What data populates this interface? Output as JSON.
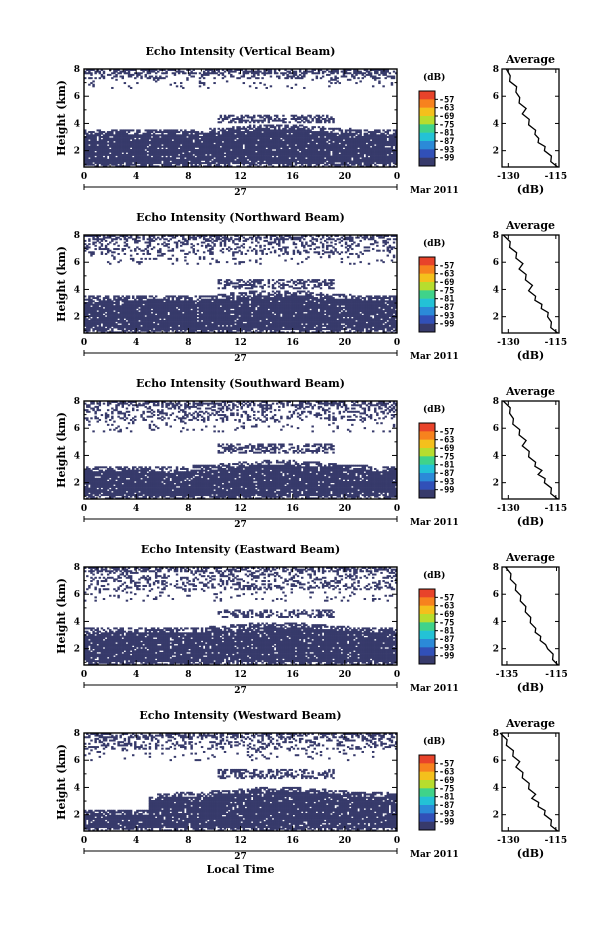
{
  "chart_data": [
    {
      "type": "heatmap",
      "title": "Echo Intensity (Vertical Beam)",
      "ylabel": "Height (km)",
      "xticks": [
        "0",
        "4",
        "8",
        "12",
        "16",
        "20",
        "0"
      ],
      "yticks": [
        "2",
        "4",
        "6",
        "8"
      ],
      "date_label": "27",
      "month_label": "Mar 2011",
      "colorbar": {
        "unit": "(dB)",
        "labels": [
          "-57",
          "-63",
          "-69",
          "-75",
          "-81",
          "-87",
          "-93",
          "-99"
        ]
      },
      "echo_layers": {
        "lower_top_km": 3.5,
        "upper_band_km": [
          4.1,
          4.6
        ],
        "top_patches_km": 7.3
      },
      "average": {
        "title": "Average",
        "xlabel": "(dB)",
        "xticks": [
          "-130",
          "-115"
        ],
        "yticks": [
          "2",
          "4",
          "6",
          "8"
        ],
        "x_db": [
          -115,
          -116,
          -117,
          -118,
          -119,
          -120,
          -121,
          -121,
          -122,
          -123,
          -124,
          -125,
          -125,
          -126,
          -127,
          -127,
          -128,
          -129,
          -130,
          -130
        ],
        "y_km": [
          0.8,
          1.2,
          1.6,
          2.0,
          2.3,
          2.6,
          2.9,
          3.2,
          3.5,
          3.9,
          4.3,
          4.7,
          5.1,
          5.5,
          5.9,
          6.3,
          6.7,
          7.1,
          7.5,
          8.0
        ]
      }
    },
    {
      "type": "heatmap",
      "title": "Echo Intensity (Northward Beam)",
      "ylabel": "Height (km)",
      "xticks": [
        "0",
        "4",
        "8",
        "12",
        "16",
        "20",
        "0"
      ],
      "yticks": [
        "2",
        "4",
        "6",
        "8"
      ],
      "date_label": "27",
      "month_label": "Mar 2011",
      "colorbar": {
        "unit": "(dB)",
        "labels": [
          "-57",
          "-63",
          "-69",
          "-75",
          "-81",
          "-87",
          "-93",
          "-99"
        ]
      },
      "echo_layers": {
        "lower_top_km": 3.5,
        "upper_band_km": [
          4.0,
          4.7
        ],
        "top_patches_km": 6.6
      },
      "average": {
        "title": "Average",
        "xlabel": "(dB)",
        "xticks": [
          "-130",
          "-115"
        ],
        "yticks": [
          "2",
          "4",
          "6",
          "8"
        ],
        "x_db": [
          -115,
          -116,
          -117,
          -117,
          -118,
          -119,
          -120,
          -121,
          -122,
          -123,
          -123,
          -124,
          -125,
          -126,
          -126,
          -127,
          -128,
          -129,
          -130,
          -131
        ],
        "y_km": [
          0.8,
          1.2,
          1.6,
          2.0,
          2.3,
          2.6,
          2.9,
          3.2,
          3.5,
          3.9,
          4.3,
          4.7,
          5.1,
          5.5,
          5.9,
          6.3,
          6.7,
          7.1,
          7.5,
          8.0
        ]
      }
    },
    {
      "type": "heatmap",
      "title": "Echo Intensity (Southward Beam)",
      "ylabel": "Height (km)",
      "xticks": [
        "0",
        "4",
        "8",
        "12",
        "16",
        "20",
        "0"
      ],
      "yticks": [
        "2",
        "4",
        "6",
        "8"
      ],
      "date_label": "27",
      "month_label": "Mar 2011",
      "colorbar": {
        "unit": "(dB)",
        "labels": [
          "-57",
          "-63",
          "-69",
          "-75",
          "-81",
          "-87",
          "-93",
          "-99"
        ]
      },
      "echo_layers": {
        "lower_top_km": 3.2,
        "upper_band_km": [
          4.2,
          4.9
        ],
        "top_patches_km": 6.5
      },
      "average": {
        "title": "Average",
        "xlabel": "(dB)",
        "xticks": [
          "-130",
          "-115"
        ],
        "yticks": [
          "2",
          "4",
          "6",
          "8"
        ],
        "x_db": [
          -115,
          -116,
          -117,
          -118,
          -119,
          -120,
          -120,
          -121,
          -122,
          -123,
          -124,
          -125,
          -125,
          -126,
          -127,
          -128,
          -129,
          -129,
          -130,
          -131
        ],
        "y_km": [
          0.8,
          1.2,
          1.6,
          2.0,
          2.3,
          2.6,
          2.9,
          3.2,
          3.5,
          3.9,
          4.3,
          4.7,
          5.1,
          5.5,
          5.9,
          6.3,
          6.7,
          7.1,
          7.5,
          8.0
        ]
      }
    },
    {
      "type": "heatmap",
      "title": "Echo Intensity (Eastward Beam)",
      "ylabel": "Height (km)",
      "xticks": [
        "0",
        "4",
        "8",
        "12",
        "16",
        "20",
        "0"
      ],
      "yticks": [
        "2",
        "4",
        "6",
        "8"
      ],
      "date_label": "27",
      "month_label": "Mar 2011",
      "colorbar": {
        "unit": "(dB)",
        "labels": [
          "-57",
          "-63",
          "-69",
          "-75",
          "-81",
          "-87",
          "-93",
          "-99"
        ]
      },
      "echo_layers": {
        "lower_top_km": 3.5,
        "upper_band_km": [
          4.3,
          4.9
        ],
        "top_patches_km": 6.3
      },
      "average": {
        "title": "Average",
        "xlabel": "(dB)",
        "xticks": [
          "-135",
          "-115"
        ],
        "yticks": [
          "2",
          "4",
          "6",
          "8"
        ],
        "x_db": [
          -115,
          -116,
          -117,
          -118,
          -120,
          -121,
          -122,
          -123,
          -124,
          -125,
          -126,
          -127,
          -128,
          -129,
          -130,
          -131,
          -132,
          -133,
          -134,
          -135
        ],
        "y_km": [
          0.8,
          1.2,
          1.6,
          2.0,
          2.3,
          2.6,
          2.9,
          3.2,
          3.5,
          3.9,
          4.3,
          4.7,
          5.1,
          5.5,
          5.9,
          6.3,
          6.7,
          7.1,
          7.5,
          8.0
        ]
      }
    },
    {
      "type": "heatmap",
      "title": "Echo Intensity (Westward Beam)",
      "ylabel": "Height (km)",
      "xticks": [
        "0",
        "4",
        "8",
        "12",
        "16",
        "20",
        "0"
      ],
      "yticks": [
        "2",
        "4",
        "6",
        "8"
      ],
      "date_label": "27",
      "month_label": "Mar 2011",
      "xlabel": "Local Time",
      "colorbar": {
        "unit": "(dB)",
        "labels": [
          "-57",
          "-63",
          "-69",
          "-75",
          "-81",
          "-87",
          "-93",
          "-99"
        ]
      },
      "echo_layers": {
        "lower_top_km": 3.6,
        "upper_band_km": [
          4.6,
          5.3
        ],
        "top_patches_km": 6.8
      },
      "average": {
        "title": "Average",
        "xlabel": "(dB)",
        "xticks": [
          "-130",
          "-115"
        ],
        "yticks": [
          "2",
          "4",
          "6",
          "8"
        ],
        "x_db": [
          -115,
          -116,
          -117,
          -118,
          -119,
          -120,
          -121,
          -122,
          -122,
          -123,
          -124,
          -125,
          -126,
          -127,
          -127,
          -128,
          -129,
          -130,
          -131,
          -132
        ],
        "y_km": [
          0.8,
          1.2,
          1.6,
          2.0,
          2.3,
          2.6,
          2.9,
          3.2,
          3.5,
          3.9,
          4.3,
          4.7,
          5.1,
          5.5,
          5.9,
          6.3,
          6.7,
          7.1,
          7.5,
          8.0
        ]
      }
    }
  ]
}
